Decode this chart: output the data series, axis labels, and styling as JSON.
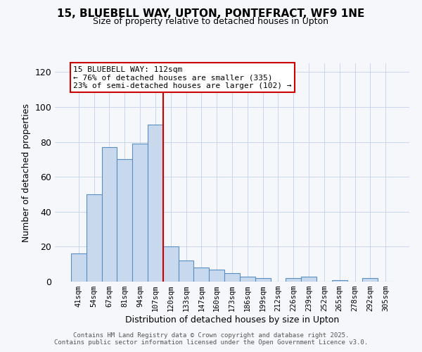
{
  "title": "15, BLUEBELL WAY, UPTON, PONTEFRACT, WF9 1NE",
  "subtitle": "Size of property relative to detached houses in Upton",
  "xlabel": "Distribution of detached houses by size in Upton",
  "ylabel": "Number of detached properties",
  "bar_labels": [
    "41sqm",
    "54sqm",
    "67sqm",
    "81sqm",
    "94sqm",
    "107sqm",
    "120sqm",
    "133sqm",
    "147sqm",
    "160sqm",
    "173sqm",
    "186sqm",
    "199sqm",
    "212sqm",
    "226sqm",
    "239sqm",
    "252sqm",
    "265sqm",
    "278sqm",
    "292sqm",
    "305sqm"
  ],
  "bar_values": [
    16,
    50,
    77,
    70,
    79,
    90,
    20,
    12,
    8,
    7,
    5,
    3,
    2,
    0,
    2,
    3,
    0,
    1,
    0,
    2,
    0
  ],
  "bar_color": "#c8d9ee",
  "bar_edge_color": "#5a8fc3",
  "vline_x_index": 5.5,
  "vline_color": "#cc0000",
  "ann_line1": "15 BLUEBELL WAY: 112sqm",
  "ann_line2": "← 76% of detached houses are smaller (335)",
  "ann_line3": "23% of semi-detached houses are larger (102) →",
  "ylim": [
    0,
    125
  ],
  "yticks": [
    0,
    20,
    40,
    60,
    80,
    100,
    120
  ],
  "background_color": "#f5f7fa",
  "grid_color": "#c8d8ec",
  "footer_line1": "Contains HM Land Registry data © Crown copyright and database right 2025.",
  "footer_line2": "Contains public sector information licensed under the Open Government Licence v3.0."
}
